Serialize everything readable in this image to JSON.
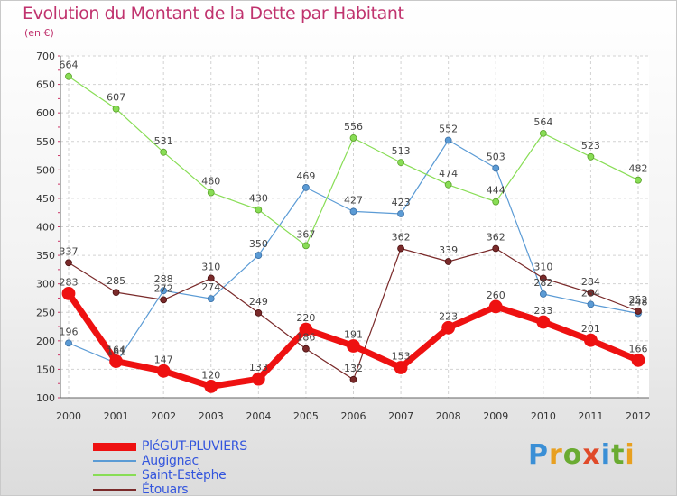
{
  "title": "Evolution du Montant de la Dette par Habitant",
  "subtitle": "(en €)",
  "logo": {
    "text": "Proxiti",
    "letter_colors": [
      "#3a8fd6",
      "#e8a020",
      "#6aab32",
      "#e04a2a",
      "#3a8fd6",
      "#6aab32",
      "#e8a020"
    ]
  },
  "chart_data": {
    "type": "line",
    "title": "Evolution du Montant de la Dette par Habitant",
    "ylabel": "(en €)",
    "xlabel": "",
    "ylim": [
      100,
      700
    ],
    "yticks": [
      100,
      150,
      200,
      250,
      300,
      350,
      400,
      450,
      500,
      550,
      600,
      650,
      700
    ],
    "grid": true,
    "legend": "bottom-left",
    "x": [
      "2000",
      "2001",
      "2002",
      "2003",
      "2004",
      "2005",
      "2006",
      "2007",
      "2008",
      "2009",
      "2010",
      "2011",
      "2012"
    ],
    "series": [
      {
        "name": "PléGUT-PLUVIERS",
        "color": "#ee1111",
        "values": [
          283,
          164,
          147,
          120,
          133,
          220,
          191,
          153,
          223,
          260,
          233,
          201,
          166
        ],
        "labels": [
          "283",
          "164",
          "147",
          "120",
          "133",
          "220",
          "191",
          "153",
          "223",
          "260",
          "233",
          "201",
          "166"
        ]
      },
      {
        "name": "Augignac",
        "color": "#5b9bd5",
        "values": [
          196,
          161,
          288,
          274,
          350,
          469,
          427,
          423,
          552,
          503,
          282,
          264,
          248
        ],
        "labels": [
          "196",
          "161",
          "288",
          "274",
          "350",
          "469",
          "427",
          "423",
          "552",
          "503",
          "282",
          "264",
          "248"
        ]
      },
      {
        "name": "Saint-Estèphe",
        "color": "#88dd55",
        "values": [
          664,
          607,
          531,
          460,
          430,
          367,
          556,
          513,
          474,
          444,
          564,
          523,
          482
        ],
        "labels": [
          "664",
          "607",
          "531",
          "460",
          "430",
          "367",
          "556",
          "513",
          "474",
          "444",
          "564",
          "523",
          "482"
        ]
      },
      {
        "name": "Étouars",
        "color": "#7a2a2a",
        "values": [
          337,
          285,
          272,
          310,
          249,
          186,
          132,
          362,
          339,
          362,
          310,
          284,
          252
        ],
        "labels": [
          "337",
          "285",
          "272",
          "310",
          "249",
          "186",
          "132",
          "362",
          "339",
          "362",
          "310",
          "284",
          "252"
        ]
      }
    ]
  }
}
